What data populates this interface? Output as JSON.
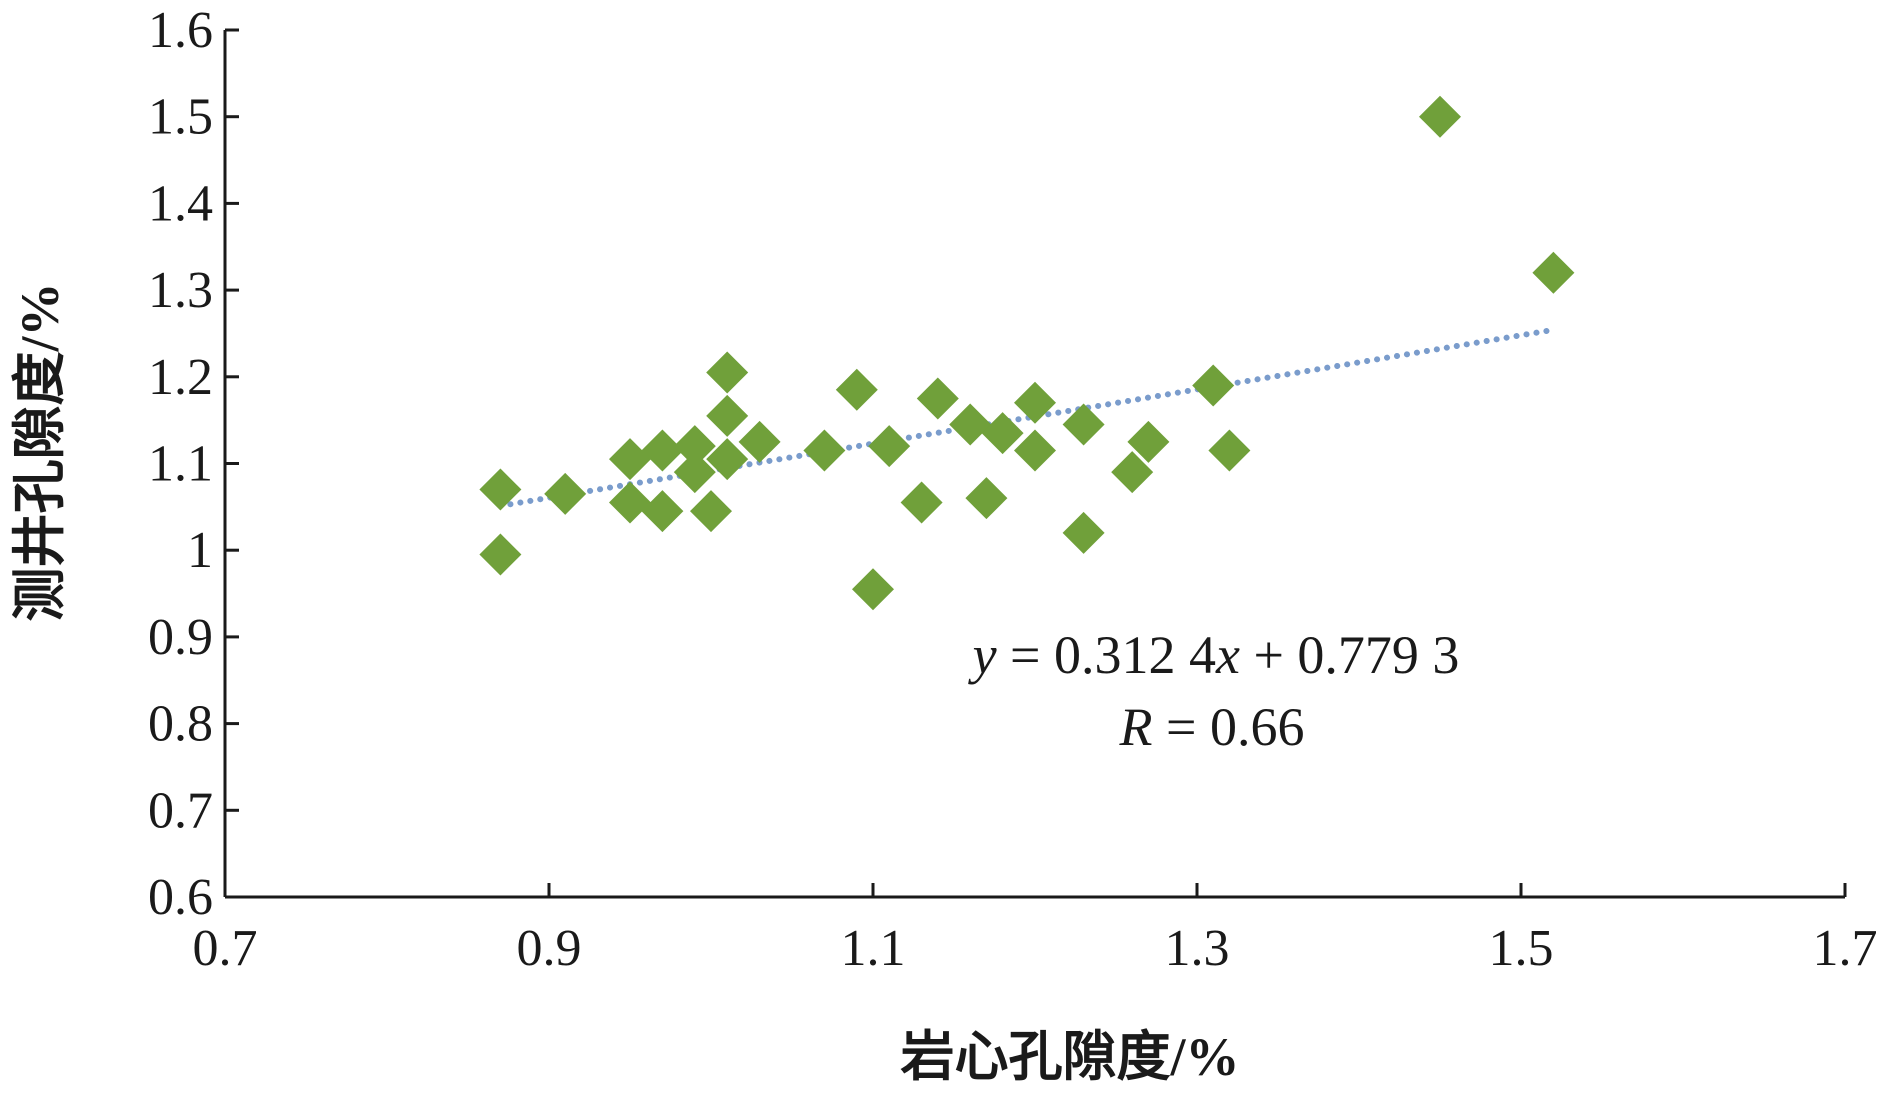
{
  "chart_data": {
    "type": "scatter",
    "title": "",
    "xlabel": "岩心孔隙度/%",
    "ylabel": "测井孔隙度/%",
    "xlim": [
      0.7,
      1.7
    ],
    "ylim": [
      0.6,
      1.6
    ],
    "xticks": [
      0.7,
      0.9,
      1.1,
      1.3,
      1.5,
      1.7
    ],
    "yticks": [
      0.6,
      0.7,
      0.8,
      0.9,
      1.0,
      1.1,
      1.2,
      1.3,
      1.4,
      1.5,
      1.6
    ],
    "xtick_labels": [
      "0.7",
      "0.9",
      "1.1",
      "1.3",
      "1.5",
      "1.7"
    ],
    "ytick_labels": [
      "0.6",
      "0.7",
      "0.8",
      "0.9",
      "1",
      "1.1",
      "1.2",
      "1.3",
      "1.4",
      "1.5",
      "1.6"
    ],
    "grid": false,
    "marker": "diamond",
    "marker_color": "#70a03a",
    "trendline_color": "#7a9ccc",
    "series": [
      {
        "x": [
          0.87,
          0.87,
          0.91,
          0.95,
          0.95,
          0.97,
          0.97,
          0.99,
          0.99,
          1.0,
          1.01,
          1.01,
          1.01,
          1.03,
          1.07,
          1.09,
          1.1,
          1.11,
          1.13,
          1.14,
          1.16,
          1.17,
          1.18,
          1.2,
          1.2,
          1.23,
          1.23,
          1.26,
          1.27,
          1.31,
          1.32,
          1.45,
          1.52
        ],
        "y": [
          1.07,
          0.995,
          1.065,
          1.105,
          1.055,
          1.115,
          1.045,
          1.12,
          1.09,
          1.045,
          1.205,
          1.155,
          1.105,
          1.125,
          1.115,
          1.185,
          0.955,
          1.12,
          1.055,
          1.175,
          1.145,
          1.06,
          1.135,
          1.17,
          1.115,
          1.145,
          1.02,
          1.09,
          1.125,
          1.19,
          1.115,
          1.5,
          1.32
        ]
      }
    ],
    "trendline": {
      "slope": 0.3124,
      "intercept": 0.7793,
      "x_range": [
        0.87,
        1.52
      ],
      "style": "dotted"
    },
    "annotations": {
      "equation_var": "y",
      "equation_rest_1": " = 0.312 4",
      "equation_x": "x",
      "equation_rest_2": " + 0.779 3",
      "r_var": "R",
      "r_rest": " = 0.66"
    }
  }
}
